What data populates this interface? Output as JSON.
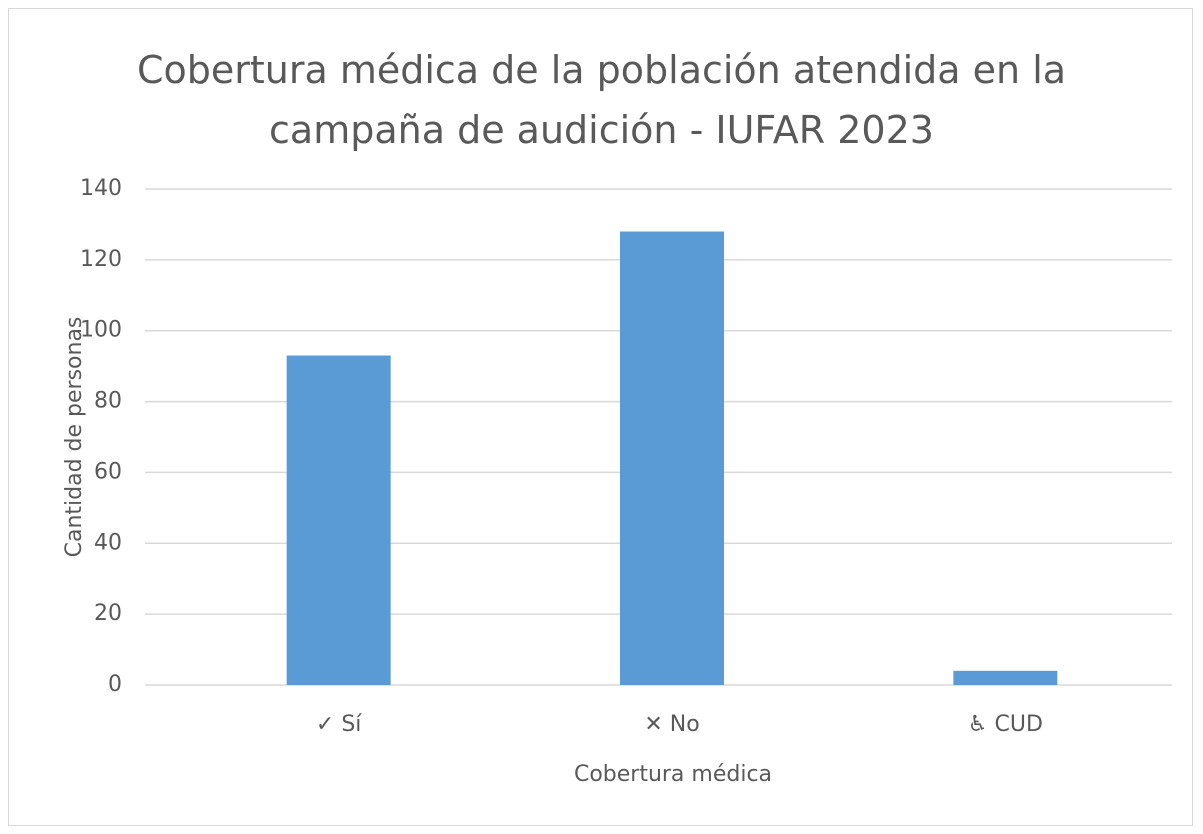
{
  "chart_data": {
    "type": "bar",
    "title": "Cobertura médica de la población atendida en la campaña de audición - IUFAR 2023",
    "x_label": "Cobertura médica",
    "y_label": "Cantidad de personas",
    "categories": [
      "✓ Sí",
      "✕ No",
      "♿ CUD"
    ],
    "values": [
      93,
      128,
      4
    ],
    "color": "#5b9bd5",
    "ylim": [
      0,
      140
    ],
    "yticks": [
      0,
      20,
      40,
      60,
      80,
      100,
      120,
      140
    ],
    "grid": true
  }
}
